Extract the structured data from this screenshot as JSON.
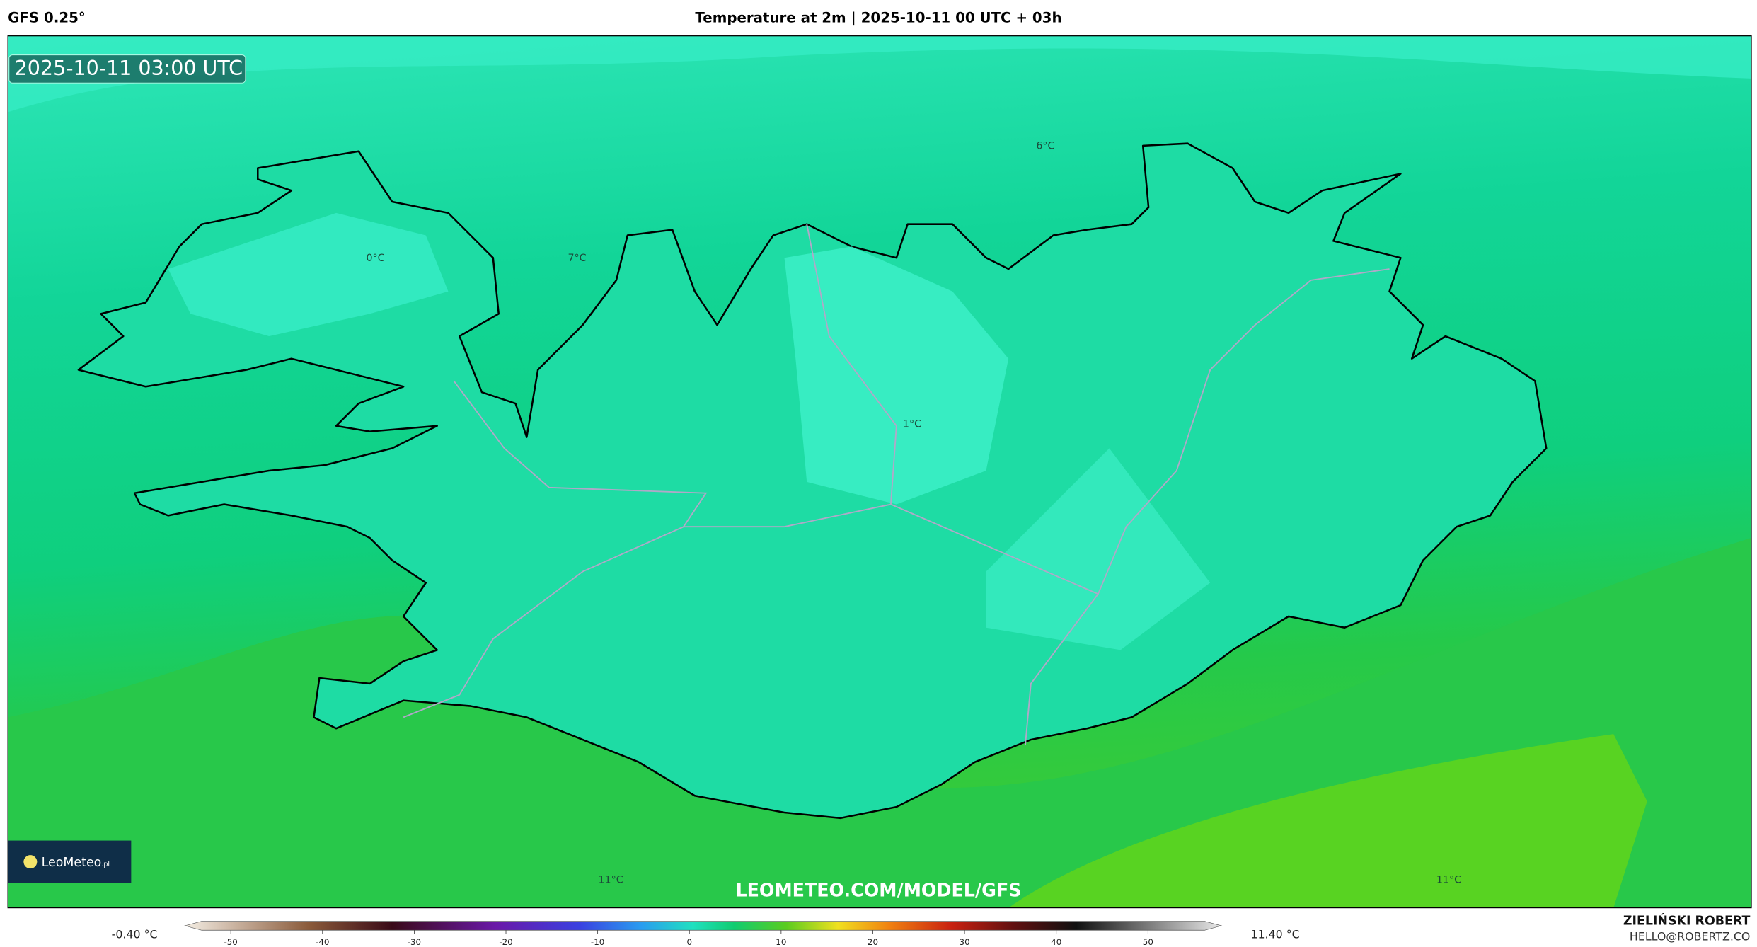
{
  "header": {
    "model": "GFS 0.25°",
    "title": "Temperature at 2m | 2025-10-11 00 UTC + 03h"
  },
  "map": {
    "timestamp": "2025-10-11 03:00 UTC",
    "contour_labels": [
      "0°C",
      "7°C",
      "6°C",
      "1°C",
      "11°C",
      "11°C"
    ],
    "logo": "LeoMeteo",
    "logo_suffix": ".pl",
    "watermark": "LEOMETEO.COM/MODEL/GFS"
  },
  "colorbar": {
    "min_label": "-0.40 °C",
    "max_label": "11.40 °C",
    "range": [
      -55,
      58
    ],
    "ticks": [
      -50,
      -40,
      -30,
      -20,
      -10,
      0,
      10,
      20,
      30,
      40,
      50
    ]
  },
  "footer": {
    "author": "ZIELIŃSKI ROBERT",
    "contact": "HELLO@ROBERTZ.CO"
  }
}
